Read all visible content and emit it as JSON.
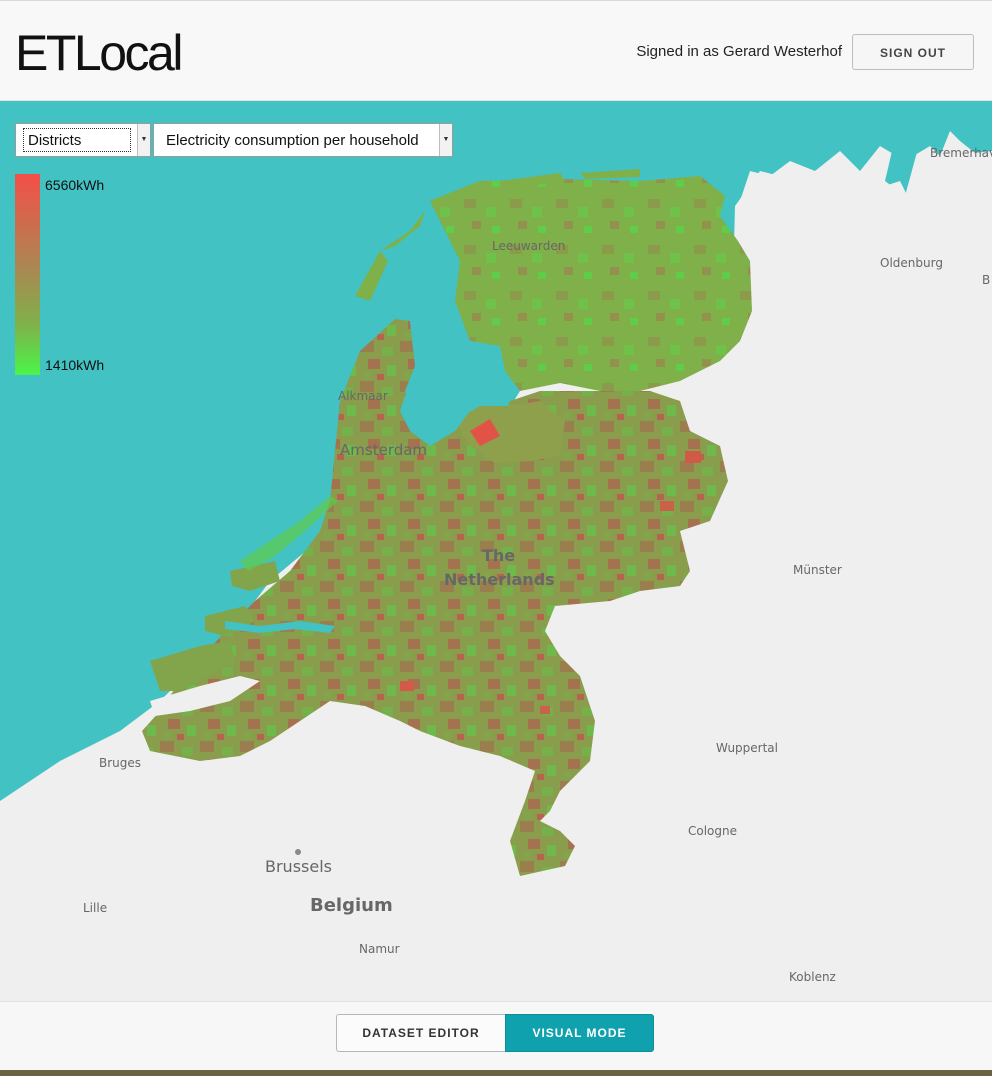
{
  "app": {
    "title": "ETLocal"
  },
  "header": {
    "signed_in_text": "Signed in as Gerard Westerhof",
    "sign_out_label": "SIGN OUT"
  },
  "controls": {
    "area_select": {
      "value": "Districts"
    },
    "metric_select": {
      "value": "Electricity consumption per household"
    }
  },
  "legend": {
    "max_label": "6560kWh",
    "min_label": "1410kWh",
    "high_color": "#f44f48",
    "low_color": "#4af54a"
  },
  "map": {
    "sea_color": "#42c2c2",
    "land_color": "#efefef",
    "labels": {
      "bremerhaven": "Bremerhav",
      "oldenburg": "Oldenburg",
      "leeuwarden": "Leeuwarden",
      "alkmaar": "Alkmaar",
      "amsterdam": "Amsterdam",
      "country_line1": "The",
      "country_line2": "Netherlands",
      "munster": "Münster",
      "wuppertal": "Wuppertal",
      "cologne": "Cologne",
      "bruges": "Bruges",
      "brussels": "Brussels",
      "belgium": "Belgium",
      "lille": "Lille",
      "namur": "Namur",
      "koblenz": "Koblenz",
      "b_edge": "B"
    }
  },
  "footer": {
    "dataset_editor_label": "DATASET EDITOR",
    "visual_mode_label": "VISUAL MODE"
  }
}
